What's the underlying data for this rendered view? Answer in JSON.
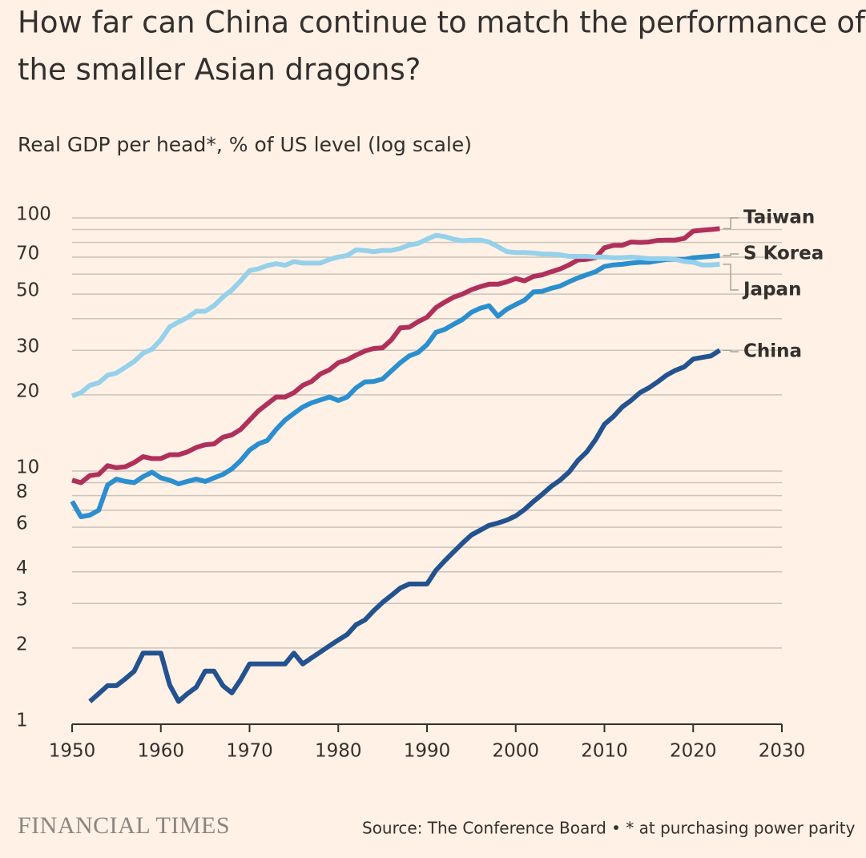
{
  "chart_data": {
    "type": "line",
    "title": "How far can China continue to match the performance of the smaller Asian dragons?",
    "title_lines": [
      "How far can China continue to match the performance of",
      "the smaller Asian dragons?"
    ],
    "subtitle": "Real GDP per head*, % of US level (log scale)",
    "log_scale": true,
    "grid": true,
    "xlim": [
      1950,
      2030
    ],
    "xticks": [
      1950,
      1960,
      1970,
      1980,
      1990,
      2000,
      2010,
      2020,
      2030
    ],
    "ylim": [
      1,
      100
    ],
    "yticks": [
      1,
      2,
      3,
      4,
      6,
      8,
      10,
      20,
      30,
      50,
      70,
      100
    ],
    "minor_yticks": [
      5,
      7,
      9,
      40,
      60,
      80,
      90
    ],
    "x": [
      1950,
      1951,
      1952,
      1953,
      1954,
      1955,
      1956,
      1957,
      1958,
      1959,
      1960,
      1961,
      1962,
      1963,
      1964,
      1965,
      1966,
      1967,
      1968,
      1969,
      1970,
      1971,
      1972,
      1973,
      1974,
      1975,
      1976,
      1977,
      1978,
      1979,
      1980,
      1981,
      1982,
      1983,
      1984,
      1985,
      1986,
      1987,
      1988,
      1989,
      1990,
      1991,
      1992,
      1993,
      1994,
      1995,
      1996,
      1997,
      1998,
      1999,
      2000,
      2001,
      2002,
      2003,
      2004,
      2005,
      2006,
      2007,
      2008,
      2009,
      2010,
      2011,
      2012,
      2013,
      2014,
      2015,
      2016,
      2017,
      2018,
      2019,
      2020,
      2021,
      2022,
      2023
    ],
    "series": [
      {
        "name": "Taiwan",
        "color": "#b0305c",
        "values": [
          9.2,
          9.0,
          9.6,
          9.7,
          10.5,
          10.3,
          10.4,
          10.8,
          11.4,
          11.2,
          11.2,
          11.6,
          11.6,
          11.9,
          12.4,
          12.7,
          12.8,
          13.6,
          13.9,
          14.6,
          15.9,
          17.3,
          18.4,
          19.6,
          19.6,
          20.4,
          21.8,
          22.6,
          24.2,
          25.1,
          26.8,
          27.5,
          28.7,
          29.8,
          30.5,
          30.7,
          33,
          36.8,
          37,
          38.9,
          40.5,
          44.2,
          46.5,
          48.6,
          50,
          52,
          53.5,
          54.7,
          54.7,
          55.9,
          57.6,
          56.4,
          58.7,
          59.6,
          61.3,
          62.8,
          65.2,
          68.2,
          68.6,
          69.6,
          76.2,
          77.9,
          77.9,
          80.3,
          80,
          80.3,
          81.5,
          81.7,
          81.7,
          83,
          88.7,
          89.4,
          90,
          90.7
        ]
      },
      {
        "name": "S Korea",
        "color": "#2b8fcf",
        "values": [
          7.6,
          6.6,
          6.7,
          7.0,
          8.8,
          9.3,
          9.1,
          9.0,
          9.5,
          9.9,
          9.4,
          9.2,
          8.9,
          9.1,
          9.3,
          9.1,
          9.4,
          9.7,
          10.2,
          11,
          12.1,
          12.8,
          13.2,
          14.6,
          15.9,
          16.9,
          17.9,
          18.6,
          19.1,
          19.6,
          19,
          19.6,
          21.3,
          22.5,
          22.6,
          23.1,
          24.9,
          26.8,
          28.5,
          29.4,
          31.6,
          35.3,
          36.3,
          38,
          39.7,
          42.4,
          44,
          45,
          40.9,
          43.6,
          45.5,
          47.3,
          51,
          51.3,
          52.7,
          53.8,
          55.9,
          57.9,
          59.6,
          61.3,
          64.3,
          65.2,
          65.6,
          66.3,
          66.8,
          66.8,
          67.7,
          68.5,
          68.5,
          68.5,
          69.6,
          70,
          70.5,
          71
        ]
      },
      {
        "name": "Japan",
        "color": "#95d1ea",
        "values": [
          19.8,
          20.4,
          21.8,
          22.3,
          23.9,
          24.4,
          25.7,
          27.1,
          29.2,
          30.3,
          33,
          37.1,
          38.8,
          40.4,
          42.8,
          42.8,
          45,
          48.7,
          51.9,
          56.4,
          61.9,
          63,
          64.8,
          65.9,
          65,
          67.2,
          66.3,
          66.3,
          66.3,
          68.5,
          70.1,
          71,
          74.7,
          74.4,
          73.6,
          74.4,
          74.4,
          75.8,
          78.1,
          79.3,
          82.4,
          85.4,
          84.3,
          82.4,
          81.2,
          81.7,
          81.7,
          80.3,
          76.9,
          73.6,
          73,
          73,
          72.6,
          72,
          72,
          71.5,
          70.5,
          70.5,
          70.5,
          70,
          70,
          69.6,
          69.6,
          70,
          69.6,
          69,
          69,
          69,
          68.5,
          67.3,
          66.8,
          65.2,
          65.2,
          65.6
        ]
      },
      {
        "name": "China",
        "color": "#23528f",
        "values": [
          null,
          null,
          1.23,
          1.32,
          1.42,
          1.42,
          1.51,
          1.62,
          1.91,
          1.91,
          1.91,
          1.43,
          1.23,
          1.32,
          1.4,
          1.62,
          1.62,
          1.42,
          1.33,
          1.5,
          1.73,
          1.73,
          1.73,
          1.73,
          1.73,
          1.91,
          1.73,
          1.83,
          1.93,
          2.04,
          2.15,
          2.26,
          2.47,
          2.58,
          2.81,
          3.03,
          3.23,
          3.45,
          3.58,
          3.58,
          3.58,
          4.05,
          4.42,
          4.79,
          5.19,
          5.59,
          5.84,
          6.1,
          6.23,
          6.4,
          6.65,
          7.05,
          7.58,
          8.1,
          8.7,
          9.2,
          9.9,
          11,
          11.9,
          13.3,
          15.3,
          16.4,
          17.9,
          19,
          20.4,
          21.3,
          22.5,
          23.9,
          25,
          25.8,
          27.7,
          28.1,
          28.5,
          30
        ]
      }
    ],
    "footer": {
      "brand": "FINANCIAL TIMES",
      "source": "Source: The Conference Board • * at purchasing power parity"
    }
  }
}
